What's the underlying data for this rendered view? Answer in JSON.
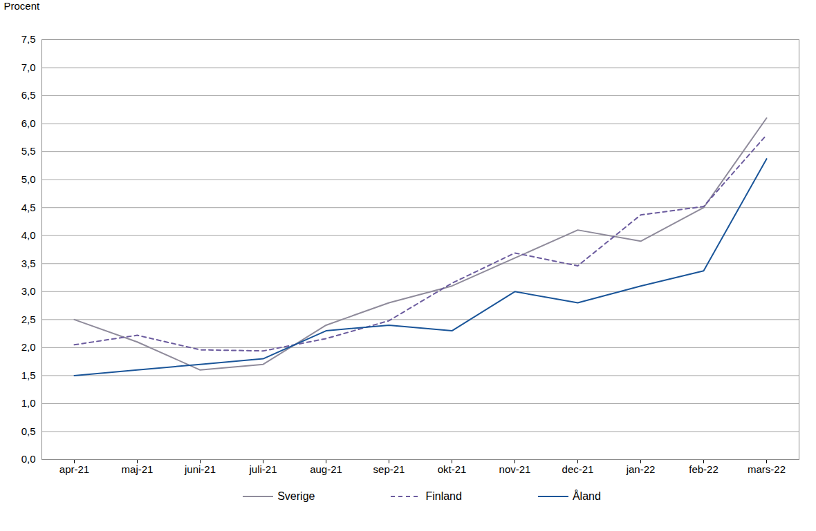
{
  "chart_data": {
    "type": "line",
    "y_label": "Procent",
    "categories": [
      "apr-21",
      "maj-21",
      "juni-21",
      "juli-21",
      "aug-21",
      "sep-21",
      "okt-21",
      "nov-21",
      "dec-21",
      "jan-22",
      "feb-22",
      "mars-22"
    ],
    "series": [
      {
        "name": "Sverige",
        "color": "#8f8b9b",
        "line_style": "solid",
        "values": [
          2.5,
          2.1,
          1.6,
          1.7,
          2.4,
          2.8,
          3.1,
          3.6,
          4.1,
          3.9,
          4.5,
          6.1
        ]
      },
      {
        "name": "Finland",
        "color": "#6b5b9e",
        "line_style": "dashed",
        "values": [
          2.05,
          2.22,
          1.96,
          1.94,
          2.16,
          2.48,
          3.15,
          3.69,
          3.46,
          4.37,
          4.52,
          5.8
        ]
      },
      {
        "name": "Åland",
        "color": "#1a5599",
        "line_style": "solid",
        "values": [
          1.5,
          1.6,
          1.7,
          1.8,
          2.3,
          2.4,
          2.3,
          3.0,
          2.8,
          3.1,
          3.37,
          5.37
        ]
      }
    ],
    "ylim": [
      0,
      7.5
    ],
    "yticks": [
      {
        "value": 0,
        "label": "0,0"
      },
      {
        "value": 0.5,
        "label": "0,5"
      },
      {
        "value": 1,
        "label": "1,0"
      },
      {
        "value": 1.5,
        "label": "1,5"
      },
      {
        "value": 2,
        "label": "2,0"
      },
      {
        "value": 2.5,
        "label": "2,5"
      },
      {
        "value": 3,
        "label": "3,0"
      },
      {
        "value": 3.5,
        "label": "3,5"
      },
      {
        "value": 4,
        "label": "4,0"
      },
      {
        "value": 4.5,
        "label": "4,5"
      },
      {
        "value": 5,
        "label": "5,0"
      },
      {
        "value": 5.5,
        "label": "5,5"
      },
      {
        "value": 6,
        "label": "6,0"
      },
      {
        "value": 6.5,
        "label": "6,5"
      },
      {
        "value": 7,
        "label": "7,0"
      },
      {
        "value": 7.5,
        "label": "7,5"
      }
    ],
    "grid": true,
    "legend": "bottom"
  }
}
